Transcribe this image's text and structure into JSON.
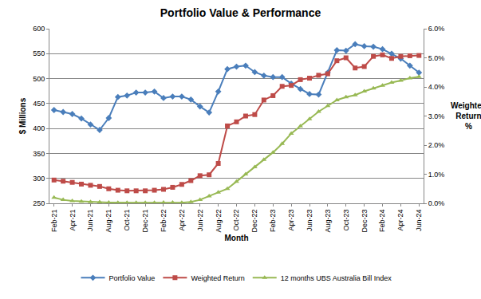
{
  "chart_data": {
    "type": "line",
    "title": "Portfolio Value & Performance",
    "x_label": "Month",
    "y_label": "$ Millions",
    "y2_label": "Weighted Return %",
    "categories": [
      "Feb-21",
      null,
      "Apr-21",
      null,
      "Jun-21",
      null,
      "Aug-21",
      null,
      "Oct-21",
      null,
      "Dec-21",
      null,
      "Feb-22",
      null,
      "Apr-22",
      null,
      "Jun-22",
      null,
      "Aug-22",
      null,
      "Oct-22",
      null,
      "Dec-22",
      null,
      "Feb-23",
      null,
      "Apr-23",
      null,
      "Jun-23",
      null,
      "Aug-23",
      null,
      "Oct-23",
      null,
      "Dec-23",
      null,
      "Feb-24",
      null,
      "Apr-24",
      null,
      "Jun-24"
    ],
    "series": [
      {
        "name": "Portfolio Value",
        "color": "#4a7ebb",
        "marker": "diamond",
        "line_style": "solid",
        "values": [
          437,
          433,
          429,
          420,
          408,
          397,
          421,
          463,
          466,
          472,
          472,
          474,
          461,
          464,
          464,
          458,
          444,
          432,
          474,
          519,
          524,
          526,
          513,
          506,
          503,
          503,
          490,
          479,
          469,
          468,
          512,
          557,
          556,
          569,
          565,
          564,
          559,
          550,
          540,
          526,
          512
        ]
      },
      {
        "name": "Weighted Return",
        "color": "#be4b48",
        "marker": "square",
        "line_style": "solid",
        "axis": "y2",
        "values": [
          0.8,
          0.76,
          0.72,
          0.66,
          0.62,
          0.58,
          0.5,
          0.45,
          0.43,
          0.43,
          0.43,
          0.45,
          0.48,
          0.55,
          0.65,
          0.78,
          0.95,
          0.98,
          1.37,
          2.66,
          2.8,
          3.0,
          3.05,
          3.55,
          3.7,
          4.02,
          4.05,
          4.25,
          4.3,
          4.4,
          4.45,
          4.9,
          5.0,
          4.65,
          4.7,
          5.05,
          5.1,
          4.98,
          5.05,
          5.07,
          5.08
        ]
      },
      {
        "name": "12 months UBS Australia Bill Index",
        "color": "#98b954",
        "marker": "triangle-up",
        "line_style": "solid",
        "axis": "y2",
        "values": [
          0.2,
          0.12,
          0.08,
          0.06,
          0.05,
          0.04,
          0.03,
          0.02,
          0.02,
          0.02,
          0.02,
          0.02,
          0.03,
          0.03,
          0.02,
          0.05,
          0.12,
          0.25,
          0.38,
          0.5,
          0.75,
          1.0,
          1.25,
          1.5,
          1.75,
          2.05,
          2.4,
          2.65,
          2.9,
          3.15,
          3.35,
          3.55,
          3.65,
          3.72,
          3.85,
          3.95,
          4.05,
          4.15,
          4.22,
          4.3,
          4.35
        ]
      }
    ],
    "ylim": [
      250,
      600
    ],
    "yticks": [
      250,
      300,
      350,
      400,
      450,
      500,
      550,
      600
    ],
    "y2lim": [
      0,
      6
    ],
    "y2ticks": [
      {
        "value": 0,
        "label": "0.0%"
      },
      {
        "value": 1,
        "label": "1.0%"
      },
      {
        "value": 2,
        "label": "2.0%"
      },
      {
        "value": 3,
        "label": "3.0%"
      },
      {
        "value": 4,
        "label": "4.0%"
      },
      {
        "value": 5,
        "label": "5.0%"
      },
      {
        "value": 6,
        "label": "6.0%"
      }
    ],
    "grid": true,
    "legend": "bottom"
  }
}
